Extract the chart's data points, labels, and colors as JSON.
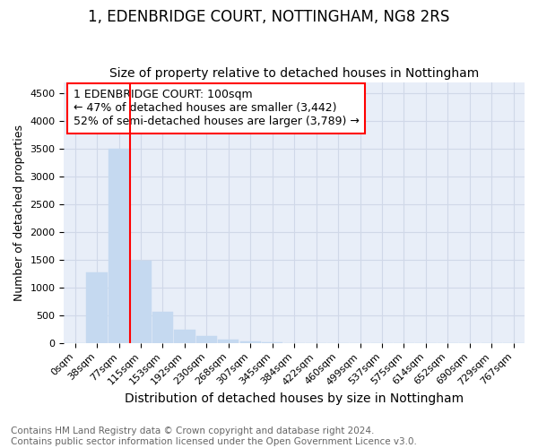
{
  "title": "1, EDENBRIDGE COURT, NOTTINGHAM, NG8 2RS",
  "subtitle": "Size of property relative to detached houses in Nottingham",
  "xlabel": "Distribution of detached houses by size in Nottingham",
  "ylabel": "Number of detached properties",
  "bar_labels": [
    "0sqm",
    "38sqm",
    "77sqm",
    "115sqm",
    "153sqm",
    "192sqm",
    "230sqm",
    "268sqm",
    "307sqm",
    "345sqm",
    "384sqm",
    "422sqm",
    "460sqm",
    "499sqm",
    "537sqm",
    "575sqm",
    "614sqm",
    "652sqm",
    "690sqm",
    "729sqm",
    "767sqm"
  ],
  "bar_values": [
    0,
    1280,
    3500,
    1480,
    570,
    240,
    130,
    70,
    30,
    10,
    5,
    2,
    1,
    0,
    0,
    0,
    0,
    0,
    0,
    0,
    0
  ],
  "bar_color": "#c5d9f0",
  "bar_edge_color": "#c5d9f0",
  "grid_color": "#d0d8e8",
  "bg_color": "#e8eef8",
  "red_line_index": 2.5,
  "annotation_box_text": "1 EDENBRIDGE COURT: 100sqm\n← 47% of detached houses are smaller (3,442)\n52% of semi-detached houses are larger (3,789) →",
  "ylim": [
    0,
    4700
  ],
  "yticks": [
    0,
    500,
    1000,
    1500,
    2000,
    2500,
    3000,
    3500,
    4000,
    4500
  ],
  "footer_line1": "Contains HM Land Registry data © Crown copyright and database right 2024.",
  "footer_line2": "Contains public sector information licensed under the Open Government Licence v3.0.",
  "title_fontsize": 12,
  "subtitle_fontsize": 10,
  "xlabel_fontsize": 10,
  "ylabel_fontsize": 9,
  "tick_fontsize": 8,
  "annot_fontsize": 9,
  "footer_fontsize": 7.5
}
